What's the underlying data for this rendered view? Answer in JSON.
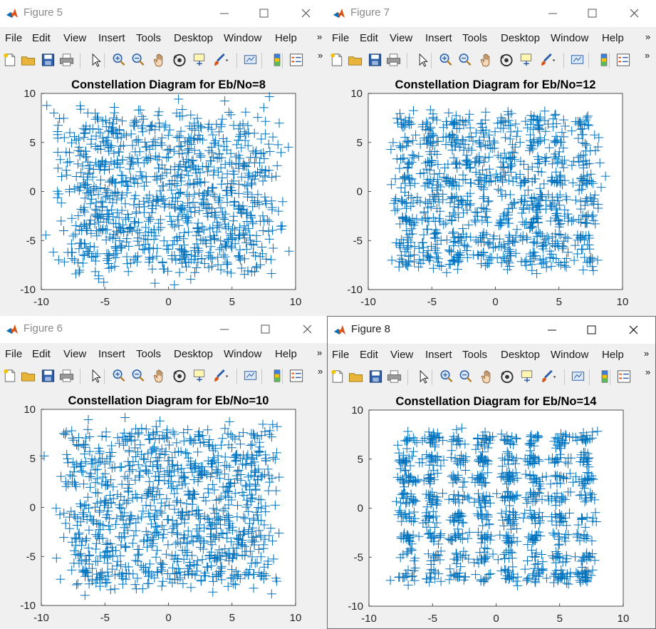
{
  "menu_items": [
    "File",
    "Edit",
    "View",
    "Insert",
    "Tools",
    "Desktop",
    "Window",
    "Help"
  ],
  "overflow_glyph": "»",
  "colors": {
    "marker": "#0072BD",
    "axes_bg": "#ffffff",
    "figure_bg": "#f0f0f0"
  },
  "toolbar_icons": [
    "new-figure-icon",
    "open-file-icon",
    "save-icon",
    "print-icon",
    "select-arrow-icon",
    "zoom-in-icon",
    "zoom-out-icon",
    "pan-hand-icon",
    "rotate-3d-icon",
    "data-cursor-icon",
    "brush-icon",
    "link-plot-icon",
    "colorbar-icon",
    "legend-icon"
  ],
  "windows": [
    {
      "title": "Figure 5",
      "chart_data": {
        "type": "scatter",
        "marker": "+",
        "title": "Constellation Diagram for Eb/No=8",
        "xlim": [
          -10,
          10
        ],
        "ylim": [
          -10,
          10
        ],
        "xticks": [
          "-10",
          "-5",
          "0",
          "5",
          "10"
        ],
        "yticks": [
          "10",
          "5",
          "0",
          "-5",
          "-10"
        ],
        "grid": "8x8 16-QAM-like lattice",
        "noise_spread": 1.05,
        "seed": 5
      }
    },
    {
      "title": "Figure 7",
      "chart_data": {
        "type": "scatter",
        "marker": "+",
        "title": "Constellation Diagram for Eb/No=12",
        "xlim": [
          -10,
          10
        ],
        "ylim": [
          -10,
          10
        ],
        "xticks": [
          "-10",
          "-5",
          "0",
          "5",
          "10"
        ],
        "yticks": [
          "10",
          "5",
          "0",
          "-5",
          "-10"
        ],
        "grid": "8x8 lattice",
        "noise_spread": 0.55,
        "seed": 7
      }
    },
    {
      "title": "Figure 6",
      "chart_data": {
        "type": "scatter",
        "marker": "+",
        "title": "Constellation Diagram for Eb/No=10",
        "xlim": [
          -10,
          10
        ],
        "ylim": [
          -10,
          10
        ],
        "xticks": [
          "-10",
          "-5",
          "0",
          "5",
          "10"
        ],
        "yticks": [
          "10",
          "5",
          "0",
          "-5",
          "-10"
        ],
        "grid": "8x8 lattice",
        "noise_spread": 0.78,
        "seed": 6
      }
    },
    {
      "title": "Figure 8",
      "chart_data": {
        "type": "scatter",
        "marker": "+",
        "title": "Constellation Diagram for Eb/No=14",
        "xlim": [
          -10,
          10
        ],
        "ylim": [
          -10,
          10
        ],
        "xticks": [
          "-10",
          "-5",
          "0",
          "5",
          "10"
        ],
        "yticks": [
          "10",
          "5",
          "0",
          "-5",
          "-10"
        ],
        "grid": "8x8 lattice",
        "noise_spread": 0.38,
        "seed": 8
      }
    }
  ]
}
